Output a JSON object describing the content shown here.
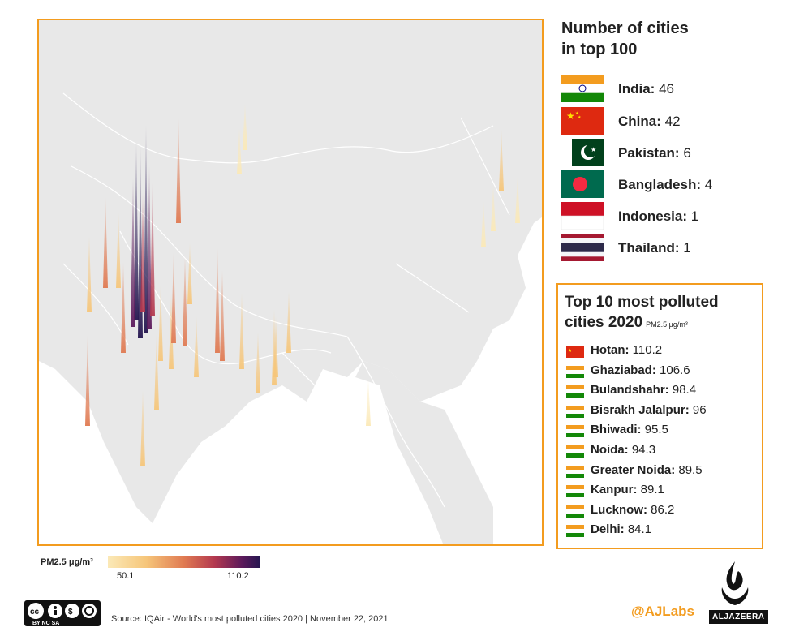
{
  "panel": {
    "title_line1": "Number of cities",
    "title_line2": "in top 100",
    "countries": [
      {
        "name": "India:",
        "count": "46",
        "flag": "india"
      },
      {
        "name": "China:",
        "count": "42",
        "flag": "china"
      },
      {
        "name": "Pakistan:",
        "count": "6",
        "flag": "pakistan"
      },
      {
        "name": "Bangladesh:",
        "count": "4",
        "flag": "bangladesh"
      },
      {
        "name": "Indonesia:",
        "count": "1",
        "flag": "indonesia"
      },
      {
        "name": "Thailand:",
        "count": "1",
        "flag": "thailand"
      }
    ]
  },
  "top10": {
    "title_line1": "Top 10 most polluted",
    "title_line2": "cities 2020",
    "units": "PM2.5 μg/m³",
    "cities": [
      {
        "name": "Hotan:",
        "value": "110.2",
        "flag": "china"
      },
      {
        "name": "Ghaziabad:",
        "value": "106.6",
        "flag": "india"
      },
      {
        "name": "Bulandshahr:",
        "value": "98.4",
        "flag": "india"
      },
      {
        "name": "Bisrakh Jalalpur:",
        "value": "96",
        "flag": "india"
      },
      {
        "name": "Bhiwadi:",
        "value": "95.5",
        "flag": "india"
      },
      {
        "name": "Noida:",
        "value": "94.3",
        "flag": "india"
      },
      {
        "name": "Greater Noida:",
        "value": "89.5",
        "flag": "india"
      },
      {
        "name": "Kanpur:",
        "value": "89.1",
        "flag": "india"
      },
      {
        "name": "Lucknow:",
        "value": "86.2",
        "flag": "india"
      },
      {
        "name": "Delhi:",
        "value": "84.1",
        "flag": "india"
      }
    ]
  },
  "legend": {
    "label": "PM2.5 μg/m³",
    "min": "50.1",
    "max": "110.2",
    "colors": [
      "#fbe9b7",
      "#f6c67a",
      "#e07a52",
      "#b3384f",
      "#5c1a5c",
      "#251650"
    ]
  },
  "footer": {
    "license": "cc-by-nc-sa",
    "license_text": "BY NC SA",
    "source": "Source: IQAir - World's most polluted cities 2020 | November 22, 2021",
    "handle": "@AJLabs",
    "logo_word": "ALJAZEERA"
  },
  "map": {
    "accent_color": "#f39c1f",
    "land_color": "#e8e8e8",
    "spikes": [
      {
        "value": 110.2
      },
      {
        "value": 106.6
      },
      {
        "value": 98.4
      },
      {
        "value": 96
      },
      {
        "value": 95.5
      },
      {
        "value": 94.3
      },
      {
        "value": 89.5
      },
      {
        "value": 89.1
      },
      {
        "value": 86.2
      },
      {
        "value": 84.1
      }
    ]
  }
}
